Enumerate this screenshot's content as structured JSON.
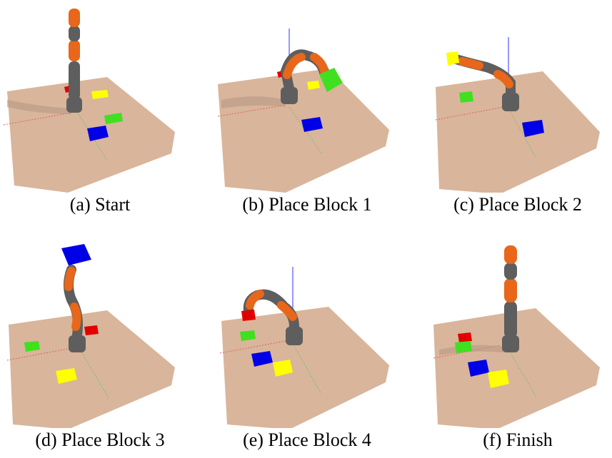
{
  "colors": {
    "table": "#d9b59b",
    "table_edge": "#c59e84",
    "shadow": "#b89a86",
    "arm_gray": "#5e5e5e",
    "arm_orange": "#e8671a",
    "block_red": "#e00000",
    "block_yellow": "#ffff00",
    "block_green": "#40e020",
    "block_blue": "#0000e6",
    "axis_red": "#e06060",
    "axis_green": "#70c070",
    "axis_blue": "#3030ff"
  },
  "panels": [
    {
      "caption": "(a) Start",
      "pose": "straight-up",
      "held_block": "none"
    },
    {
      "caption": "(b) Place Block 1",
      "pose": "reach-right",
      "held_block": "green"
    },
    {
      "caption": "(c) Place Block 2",
      "pose": "reach-far-left",
      "held_block": "yellow"
    },
    {
      "caption": "(d) Place Block 3",
      "pose": "up-holding",
      "held_block": "blue"
    },
    {
      "caption": "(e) Place Block 4",
      "pose": "reach-left",
      "held_block": "red"
    },
    {
      "caption": "(f) Finish",
      "pose": "straight-up",
      "held_block": "none"
    }
  ]
}
